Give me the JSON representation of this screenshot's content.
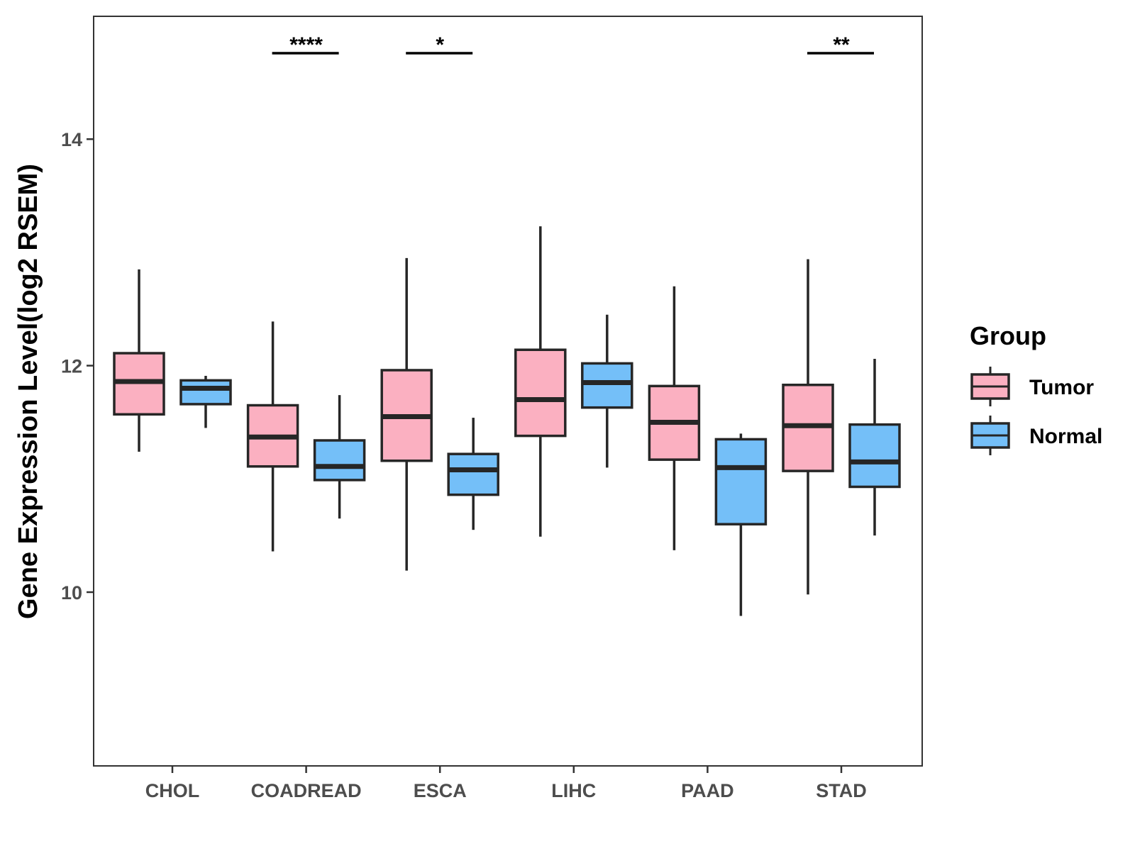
{
  "chart_data": {
    "type": "boxplot",
    "title": "",
    "xlabel": "",
    "ylabel": "Gene Expression Level(log2 RSEM)",
    "ylim": [
      8.5,
      15.1
    ],
    "yticks": [
      10,
      12,
      14
    ],
    "ytick_labels": [
      "10",
      "12",
      "14"
    ],
    "grid": false,
    "legend": {
      "title": "Group",
      "position": "right",
      "entries": [
        {
          "name": "Tumor",
          "color": "#FBB0C1"
        },
        {
          "name": "Normal",
          "color": "#74BFF8"
        }
      ]
    },
    "categories": [
      "CHOL",
      "COADREAD",
      "ESCA",
      "LIHC",
      "PAAD",
      "STAD"
    ],
    "series": [
      {
        "name": "Tumor",
        "color": "#FBB0C1",
        "boxes": [
          {
            "whislo": 11.24,
            "q1": 11.57,
            "med": 11.86,
            "q3": 12.11,
            "whishi": 12.85
          },
          {
            "whislo": 10.36,
            "q1": 11.11,
            "med": 11.37,
            "q3": 11.65,
            "whishi": 12.39
          },
          {
            "whislo": 10.19,
            "q1": 11.16,
            "med": 11.55,
            "q3": 11.96,
            "whishi": 12.95
          },
          {
            "whislo": 10.49,
            "q1": 11.38,
            "med": 11.7,
            "q3": 12.14,
            "whishi": 13.23
          },
          {
            "whislo": 10.37,
            "q1": 11.17,
            "med": 11.5,
            "q3": 11.82,
            "whishi": 12.7
          },
          {
            "whislo": 9.98,
            "q1": 11.07,
            "med": 11.47,
            "q3": 11.83,
            "whishi": 12.94
          }
        ]
      },
      {
        "name": "Normal",
        "color": "#74BFF8",
        "boxes": [
          {
            "whislo": 11.45,
            "q1": 11.66,
            "med": 11.8,
            "q3": 11.87,
            "whishi": 11.91
          },
          {
            "whislo": 10.65,
            "q1": 10.99,
            "med": 11.11,
            "q3": 11.34,
            "whishi": 11.74
          },
          {
            "whislo": 10.55,
            "q1": 10.86,
            "med": 11.08,
            "q3": 11.22,
            "whishi": 11.54
          },
          {
            "whislo": 11.1,
            "q1": 11.63,
            "med": 11.85,
            "q3": 12.02,
            "whishi": 12.45
          },
          {
            "whislo": 9.79,
            "q1": 10.6,
            "med": 11.1,
            "q3": 11.35,
            "whishi": 11.4
          },
          {
            "whislo": 10.5,
            "q1": 10.93,
            "med": 11.15,
            "q3": 11.48,
            "whishi": 12.06
          }
        ]
      }
    ],
    "significance": [
      {
        "category": "COADREAD",
        "label": "****"
      },
      {
        "category": "ESCA",
        "label": "*"
      },
      {
        "category": "STAD",
        "label": "**"
      }
    ]
  }
}
